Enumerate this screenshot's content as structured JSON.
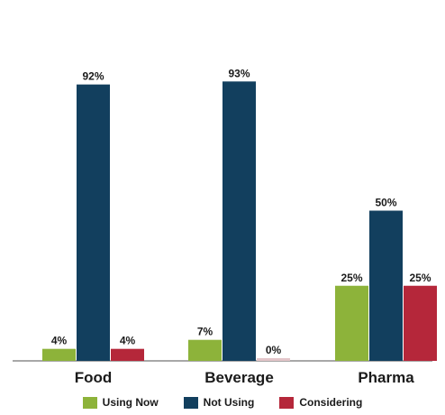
{
  "chart_data": {
    "type": "bar",
    "categories": [
      "Food",
      "Beverage",
      "Pharma"
    ],
    "series": [
      {
        "name": "Using Now",
        "values": [
          4,
          7,
          25
        ],
        "labels": [
          "4%",
          "7%",
          "25%"
        ]
      },
      {
        "name": "Not Using",
        "values": [
          92,
          93,
          50
        ],
        "labels": [
          "92%",
          "93%",
          "50%"
        ]
      },
      {
        "name": "Considering",
        "values": [
          4,
          0,
          25
        ],
        "labels": [
          "4%",
          "0%",
          "25%"
        ]
      }
    ],
    "colors": [
      "#8db33a",
      "#123f5e",
      "#b5273a"
    ],
    "ylim": [
      0,
      100
    ],
    "legend_position": "bottom",
    "grid": false
  }
}
